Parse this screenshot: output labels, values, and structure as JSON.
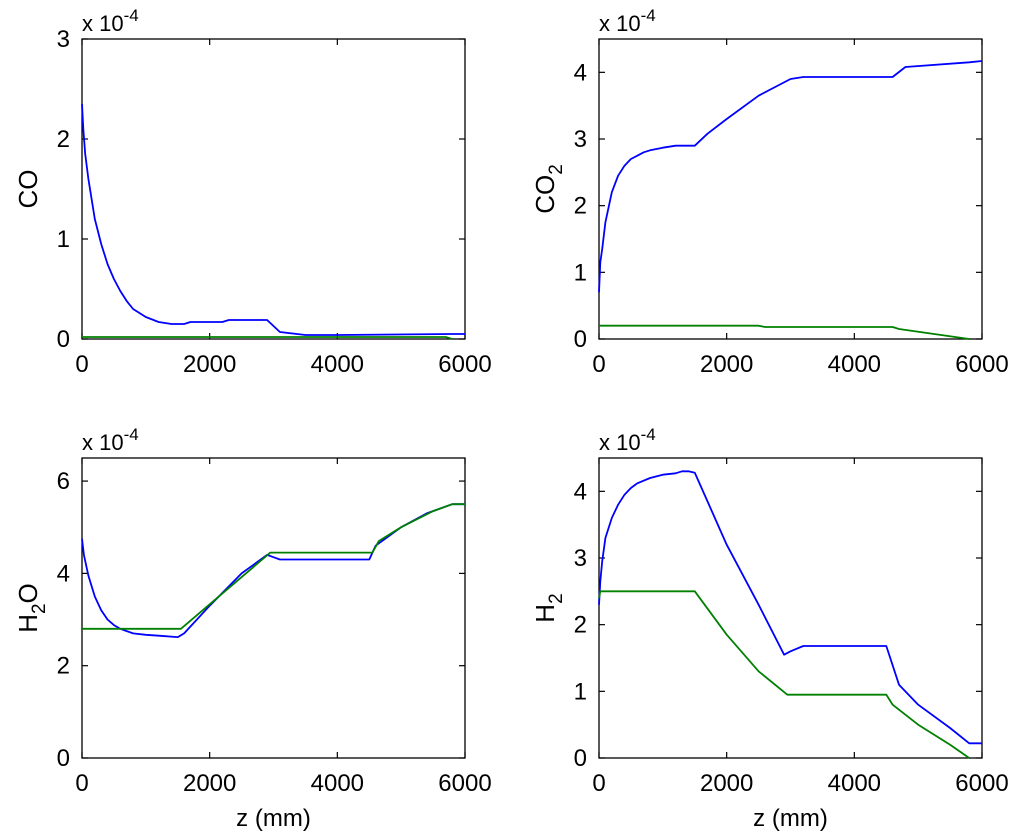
{
  "chart_data": [
    {
      "type": "line",
      "ylabel": "CO",
      "ylabel_sub": "",
      "ylabel_tail": "",
      "xlabel": "",
      "exponent_base": "x 10",
      "exponent_power": "-4",
      "xlim": [
        0,
        6000
      ],
      "ylim": [
        0,
        3
      ],
      "xticks": [
        0,
        2000,
        4000,
        6000
      ],
      "yticks": [
        0,
        1,
        2,
        3
      ],
      "series": [
        {
          "color": "#0000ff",
          "x": [
            0,
            20,
            50,
            100,
            200,
            300,
            400,
            500,
            600,
            700,
            800,
            1000,
            1200,
            1400,
            1600,
            1700,
            2200,
            2300,
            2900,
            3100,
            3500,
            4000,
            5800,
            6000
          ],
          "y": [
            2.35,
            2.1,
            1.85,
            1.6,
            1.2,
            0.95,
            0.75,
            0.6,
            0.48,
            0.38,
            0.3,
            0.22,
            0.17,
            0.15,
            0.15,
            0.17,
            0.17,
            0.19,
            0.19,
            0.07,
            0.04,
            0.04,
            0.05,
            0.05
          ]
        },
        {
          "color": "#008000",
          "x": [
            0,
            5700,
            5800
          ],
          "y": [
            0.02,
            0.02,
            0.0
          ]
        }
      ]
    },
    {
      "type": "line",
      "ylabel": "CO",
      "ylabel_sub": "2",
      "ylabel_tail": "",
      "xlabel": "",
      "exponent_base": "x 10",
      "exponent_power": "-4",
      "xlim": [
        0,
        6000
      ],
      "ylim": [
        0,
        4.5
      ],
      "xticks": [
        0,
        2000,
        4000,
        6000
      ],
      "yticks": [
        0,
        1,
        2,
        3,
        4
      ],
      "series": [
        {
          "color": "#0000ff",
          "x": [
            0,
            20,
            50,
            100,
            200,
            300,
            400,
            500,
            600,
            700,
            800,
            1000,
            1200,
            1500,
            1700,
            2000,
            2500,
            3000,
            3200,
            4600,
            4800,
            5800,
            6000
          ],
          "y": [
            0.7,
            1.15,
            1.35,
            1.75,
            2.2,
            2.45,
            2.6,
            2.7,
            2.75,
            2.8,
            2.83,
            2.87,
            2.9,
            2.9,
            3.08,
            3.3,
            3.65,
            3.9,
            3.93,
            3.93,
            4.08,
            4.15,
            4.17
          ]
        },
        {
          "color": "#008000",
          "x": [
            0,
            2500,
            2600,
            4600,
            4700,
            5800
          ],
          "y": [
            0.2,
            0.2,
            0.18,
            0.18,
            0.15,
            0.0
          ]
        }
      ]
    },
    {
      "type": "line",
      "ylabel": "H",
      "ylabel_sub": "2",
      "ylabel_tail": "O",
      "xlabel": "z (mm)",
      "exponent_base": "x 10",
      "exponent_power": "-4",
      "xlim": [
        0,
        6000
      ],
      "ylim": [
        0,
        6.5
      ],
      "xticks": [
        0,
        2000,
        4000,
        6000
      ],
      "yticks": [
        0,
        2,
        4,
        6
      ],
      "series": [
        {
          "color": "#0000ff",
          "x": [
            0,
            30,
            100,
            200,
            300,
            400,
            500,
            600,
            700,
            800,
            1000,
            1200,
            1500,
            1600,
            2000,
            2500,
            2900,
            3000,
            3100,
            4500,
            4600,
            5000,
            5400,
            5800,
            6000
          ],
          "y": [
            4.75,
            4.4,
            3.95,
            3.5,
            3.2,
            3.0,
            2.88,
            2.8,
            2.75,
            2.7,
            2.67,
            2.65,
            2.62,
            2.7,
            3.3,
            4.0,
            4.4,
            4.35,
            4.3,
            4.3,
            4.6,
            5.0,
            5.3,
            5.5,
            5.5
          ]
        },
        {
          "color": "#008000",
          "x": [
            0,
            1550,
            2950,
            4550,
            4650,
            5000,
            5500,
            5800,
            6000
          ],
          "y": [
            2.8,
            2.8,
            4.45,
            4.45,
            4.7,
            5.0,
            5.35,
            5.5,
            5.5
          ]
        }
      ]
    },
    {
      "type": "line",
      "ylabel": "H",
      "ylabel_sub": "2",
      "ylabel_tail": "",
      "xlabel": "z (mm)",
      "exponent_base": "x 10",
      "exponent_power": "-4",
      "xlim": [
        0,
        6000
      ],
      "ylim": [
        0,
        4.5
      ],
      "xticks": [
        0,
        2000,
        4000,
        6000
      ],
      "yticks": [
        0,
        1,
        2,
        3,
        4
      ],
      "series": [
        {
          "color": "#0000ff",
          "x": [
            0,
            20,
            50,
            100,
            200,
            300,
            400,
            500,
            600,
            800,
            1000,
            1200,
            1300,
            1400,
            1500,
            2000,
            2500,
            2900,
            3000,
            3200,
            4500,
            4700,
            5000,
            5500,
            5800,
            6000
          ],
          "y": [
            2.3,
            2.65,
            2.95,
            3.3,
            3.6,
            3.8,
            3.95,
            4.05,
            4.12,
            4.2,
            4.25,
            4.27,
            4.3,
            4.3,
            4.28,
            3.2,
            2.3,
            1.55,
            1.6,
            1.68,
            1.68,
            1.1,
            0.8,
            0.45,
            0.22,
            0.22
          ]
        },
        {
          "color": "#008000",
          "x": [
            0,
            20,
            1500,
            2000,
            2500,
            2950,
            4500,
            4600,
            5000,
            5500,
            5800
          ],
          "y": [
            2.4,
            2.5,
            2.5,
            1.85,
            1.3,
            0.95,
            0.95,
            0.8,
            0.5,
            0.2,
            0.0
          ]
        }
      ]
    }
  ]
}
